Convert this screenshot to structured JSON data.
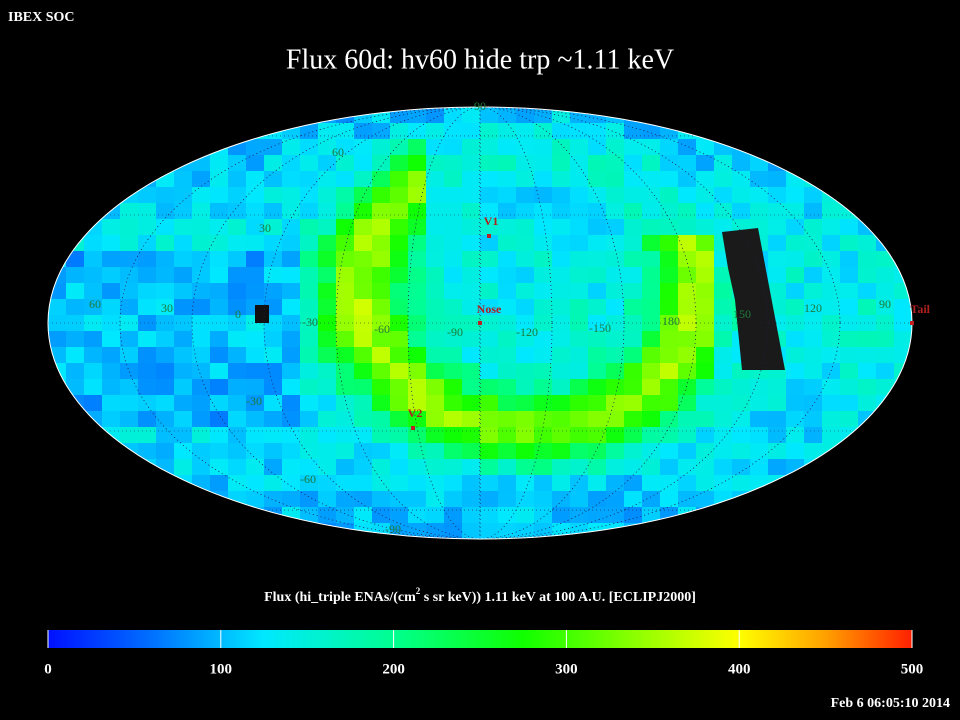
{
  "header": {
    "source": "IBEX SOC",
    "title": "Flux   60d: hv60 hide trp ~1.11 keV",
    "timestamp": "Feb  6 06:05:10 2014"
  },
  "map": {
    "longitude_labels": [
      "60",
      "30",
      "0",
      "-30",
      "-60",
      "-90",
      "-120",
      "-150",
      "180",
      "150",
      "120",
      "90"
    ],
    "latitude_labels": [
      "90",
      "60",
      "30",
      "-30",
      "-60",
      "-90"
    ],
    "markers": [
      "V1",
      "Nose",
      "V2",
      "Tail"
    ]
  },
  "colorbar": {
    "label": [
      "Flux (hi_triple ENAs/(cm",
      "2",
      " s sr keV))  1.11 keV at 100 A.U. [ECLIPJ2000]"
    ],
    "lim": [
      0,
      500
    ],
    "ticks": [
      0,
      100,
      200,
      300,
      400,
      500
    ]
  }
}
